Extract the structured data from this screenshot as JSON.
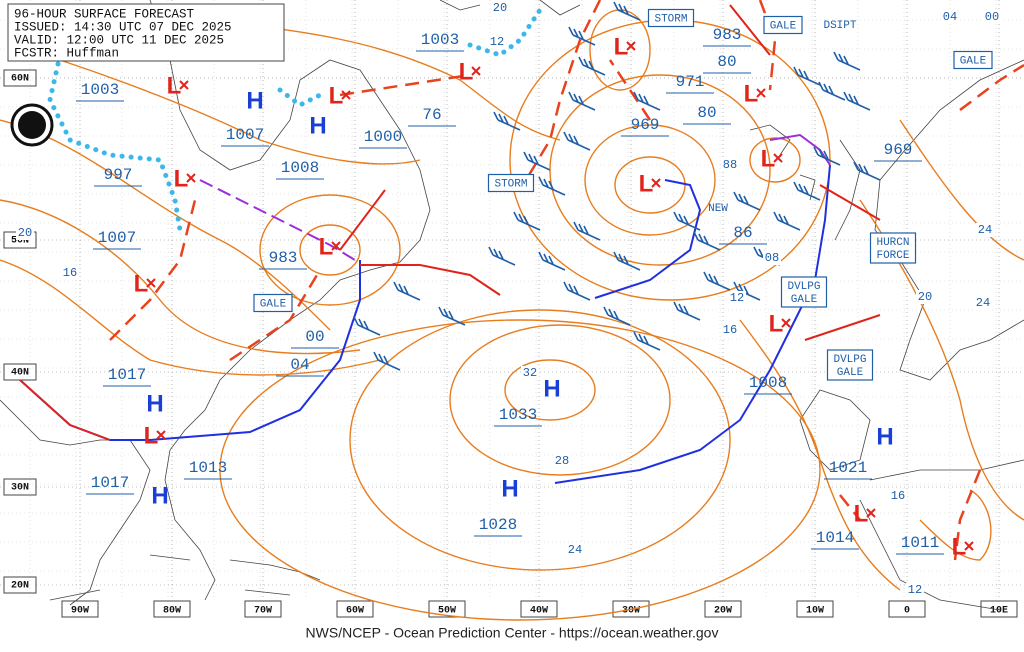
{
  "header": {
    "lines": [
      "96-HOUR SURFACE FORECAST",
      "ISSUED: 14:30 UTC 07 DEC 2025",
      "VALID:  12:00 UTC 11 DEC 2025",
      "FCSTR:  Huffman"
    ]
  },
  "footer": "NWS/NCEP - Ocean Prediction Center - https://ocean.weather.gov",
  "longitude_labels": [
    "90W",
    "80W",
    "70W",
    "60W",
    "50W",
    "40W",
    "30W",
    "20W",
    "10W",
    "0",
    "10E"
  ],
  "latitude_labels": [
    "60N",
    "50N",
    "40N",
    "30N",
    "20N"
  ],
  "pressure_labels": [
    "1003",
    "1003",
    "1007",
    "997",
    "1008",
    "1000",
    "76",
    "1007",
    "983",
    "00",
    "04",
    "1017",
    "1033",
    "1013",
    "1017",
    "1028",
    "1014",
    "1011",
    "1021",
    "1008",
    "969",
    "971",
    "983",
    "80",
    "80",
    "969",
    "86"
  ],
  "isobar_labels": [
    "20",
    "12",
    "20",
    "16",
    "32",
    "28",
    "24",
    "88",
    "08",
    "12",
    "16",
    "20",
    "24",
    "24",
    "16",
    "12",
    "04",
    "00"
  ],
  "warnings": [
    [
      "STORM"
    ],
    [
      "GALE"
    ],
    [
      "GALE"
    ],
    [
      "STORM"
    ],
    [
      "HURCN",
      "FORCE"
    ],
    [
      "GALE"
    ],
    [
      "DVLPG",
      "GALE"
    ],
    [
      "DVLPG",
      "GALE"
    ]
  ],
  "notes": [
    "DSIPT",
    "NEW"
  ],
  "highs": [
    "H",
    "H",
    "H",
    "H",
    "H",
    "H",
    "H"
  ],
  "lows": [
    "L",
    "L",
    "L",
    "L",
    "L",
    "L",
    "L",
    "L",
    "L",
    "L",
    "L",
    "L",
    "L",
    "L"
  ]
}
